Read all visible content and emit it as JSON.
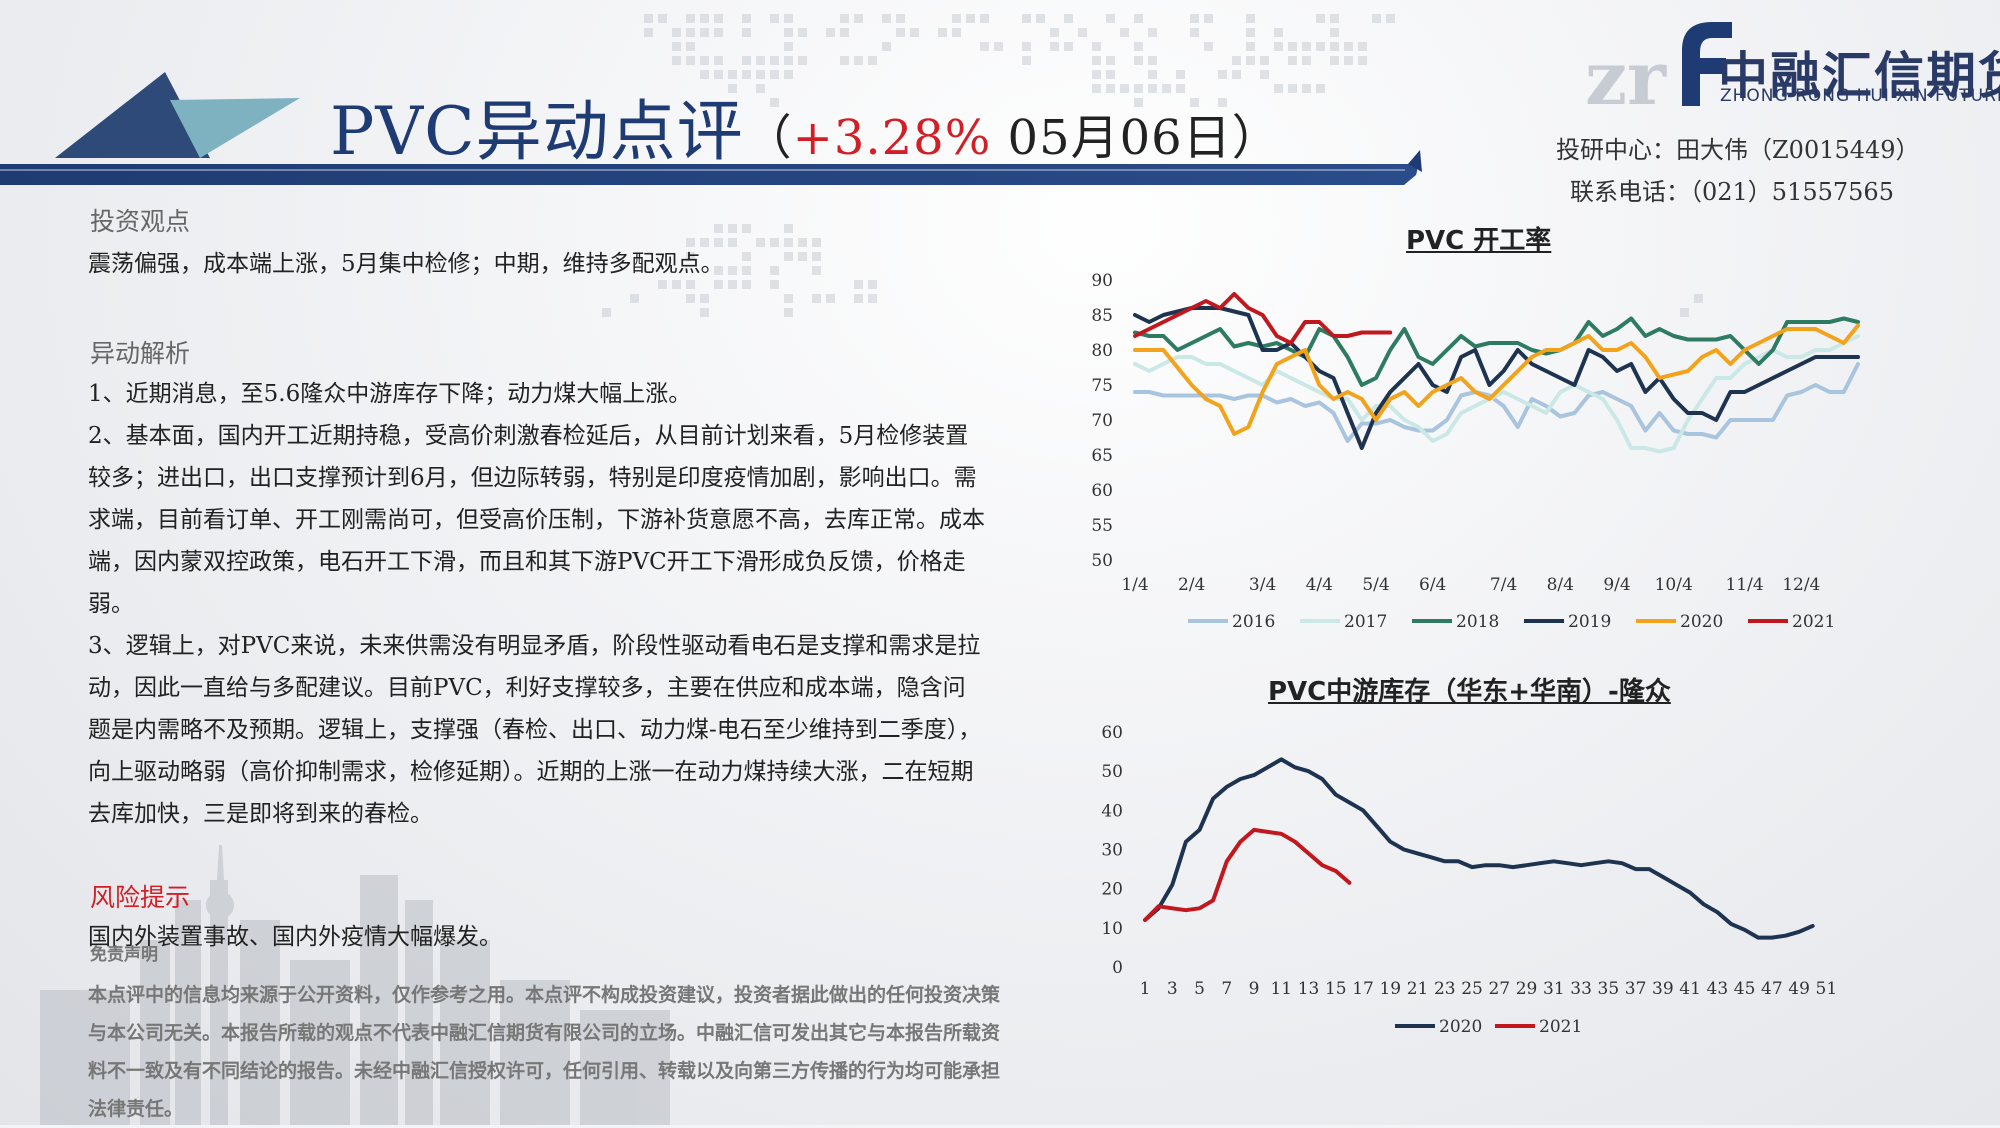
{
  "header": {
    "title_main": "PVC异动点评",
    "title_open": "（",
    "title_pct": "+3.28%",
    "title_date": " 05月06日）",
    "logo_cn": "中融汇信期货",
    "logo_en": "ZHONG RONG HUI XIN FUTURES",
    "logo_mark": "zr",
    "contact_analyst": "投研中心：田大伟（Z0015449）",
    "contact_phone": "联系电话：（021）51557565"
  },
  "colors": {
    "navy": "#1f3b73",
    "red": "#d21f26",
    "teal": "#7fb2c1"
  },
  "sections": {
    "view_title": "投资观点",
    "view_text": "震荡偏强，成本端上涨，5月集中检修；中期，维持多配观点。",
    "analysis_title": "异动解析",
    "analysis_1": "1、近期消息，至5.6隆众中游库存下降；动力煤大幅上涨。",
    "analysis_2": "2、基本面，国内开工近期持稳，受高价刺激春检延后，从目前计划来看，5月检修装置较多；进出口，出口支撑预计到6月，但边际转弱，特别是印度疫情加剧，影响出口。需求端，目前看订单、开工刚需尚可，但受高价压制，下游补货意愿不高，去库正常。成本端，因内蒙双控政策，电石开工下滑，而且和其下游PVC开工下滑形成负反馈，价格走弱。",
    "analysis_3": "3、逻辑上，对PVC来说，未来供需没有明显矛盾，阶段性驱动看电石是支撑和需求是拉动，因此一直给与多配建议。目前PVC，利好支撑较多，主要在供应和成本端，隐含问题是内需略不及预期。逻辑上，支撑强（春检、出口、动力煤-电石至少维持到二季度），向上驱动略弱（高价抑制需求，检修延期）。近期的上涨一在动力煤持续大涨，二在短期去库加快，三是即将到来的春检。",
    "risk_title": "风险提示",
    "risk_text": "国内外装置事故、国内外疫情大幅爆发。",
    "disclaimer_title": "免责声明",
    "disclaimer_text": "本点评中的信息均来源于公开资料，仅作参考之用。本点评不构成投资建议，投资者据此做出的任何投资决策与本公司无关。本报告所载的观点不代表中融汇信期货有限公司的立场。中融汇信可发出其它与本报告所载资料不一致及有不同结论的报告。未经中融汇信授权许可，任何引用、转载以及向第三方传播的行为均可能承担法律责任。"
  },
  "chart_data": [
    {
      "type": "line",
      "title": "PVC 开工率",
      "ylim": [
        50,
        90
      ],
      "yticks": [
        50,
        55,
        60,
        65,
        70,
        75,
        80,
        85,
        90
      ],
      "x_ticks": [
        "1/4",
        "2/4",
        "3/4",
        "4/4",
        "5/4",
        "6/4",
        "7/4",
        "8/4",
        "9/4",
        "10/4",
        "11/4",
        "12/4"
      ],
      "x_count": 52,
      "legend": "bottom",
      "series": [
        {
          "name": "2016",
          "color": "#a9c4df",
          "values": [
            74,
            74,
            73.5,
            73.5,
            73.5,
            73.5,
            73.5,
            73,
            73.5,
            73.5,
            72.5,
            73,
            72,
            72.5,
            71,
            67,
            69.5,
            69.5,
            70,
            69,
            68.5,
            68.5,
            70,
            73.5,
            74,
            73.5,
            72,
            69,
            73,
            72,
            70.5,
            71,
            73.5,
            74,
            73,
            72,
            68.5,
            71,
            68.5,
            68,
            68,
            67.5,
            70,
            70,
            70,
            70,
            73.5,
            74,
            75,
            74,
            74,
            78
          ]
        },
        {
          "name": "2017",
          "color": "#c9e8e6",
          "values": [
            78,
            77,
            78,
            79,
            79,
            78,
            78,
            77,
            76,
            75,
            77,
            76,
            75,
            74,
            73,
            73,
            70,
            72,
            72,
            70,
            69,
            67,
            68,
            71,
            72,
            73,
            74,
            73,
            72,
            71,
            74,
            75,
            74,
            73,
            70,
            66,
            66,
            65.5,
            66,
            70,
            73,
            76,
            76,
            78,
            79,
            80,
            79,
            79,
            80,
            80,
            81,
            82
          ]
        },
        {
          "name": "2018",
          "color": "#2e7b62",
          "values": [
            82.5,
            82,
            82,
            80,
            81,
            82,
            83,
            80.5,
            81,
            80.5,
            81,
            80,
            79,
            83,
            82,
            79,
            75,
            76,
            80,
            83,
            79,
            78,
            80,
            82,
            80.5,
            81,
            81,
            81,
            80,
            79.5,
            80,
            81,
            84,
            82,
            83,
            84.5,
            82,
            83,
            82,
            81.5,
            81.5,
            81.5,
            82,
            80,
            78,
            80,
            84,
            84,
            84,
            84,
            84.5,
            84
          ]
        },
        {
          "name": "2019",
          "color": "#1e3350",
          "values": [
            85,
            84,
            85,
            85.5,
            86,
            86,
            86,
            85.5,
            85,
            80,
            80,
            81,
            79,
            77,
            76,
            71,
            66,
            71,
            74,
            76,
            78,
            75,
            74,
            79,
            80,
            75,
            77,
            80,
            78,
            77,
            76,
            75,
            80,
            79,
            77,
            78,
            74,
            76,
            73,
            71,
            71,
            70,
            74,
            74,
            75,
            76,
            77,
            78,
            79,
            79,
            79,
            79
          ]
        },
        {
          "name": "2020",
          "color": "#f2a31b",
          "values": [
            80,
            80,
            80,
            77.5,
            75,
            73,
            72,
            68,
            69,
            74,
            78,
            79,
            80,
            75,
            73,
            74,
            73,
            70,
            73,
            74,
            72,
            74,
            75,
            76,
            74,
            73,
            75,
            77,
            79,
            80,
            80,
            81,
            82,
            80,
            80,
            81,
            79,
            76,
            76.5,
            77,
            79,
            80,
            78,
            80,
            81,
            82,
            83,
            83,
            83,
            82,
            81,
            83.5
          ]
        },
        {
          "name": "2021",
          "color": "#c0181e",
          "values": [
            82,
            83,
            84,
            85,
            86,
            87,
            86,
            88,
            86,
            85,
            82,
            81,
            84,
            84,
            82,
            82,
            82.5,
            82.5,
            82.5
          ]
        }
      ]
    },
    {
      "type": "line",
      "title": "PVC中游库存（华东+华南）-隆众",
      "ylim": [
        0,
        60
      ],
      "yticks": [
        0,
        10,
        20,
        30,
        40,
        50,
        60
      ],
      "x_ticks": [
        "1",
        "3",
        "5",
        "7",
        "9",
        "11",
        "13",
        "15",
        "17",
        "19",
        "21",
        "23",
        "25",
        "27",
        "29",
        "31",
        "33",
        "35",
        "37",
        "39",
        "41",
        "43",
        "45",
        "47",
        "49",
        "51"
      ],
      "x_first": 1,
      "x_count": 52,
      "legend": "bottom",
      "series": [
        {
          "name": "2020",
          "color": "#1e3350",
          "values": [
            null,
            null,
            null,
            null,
            null,
            null,
            null,
            null,
            null,
            null,
            null,
            null,
            null,
            null,
            null,
            null,
            null,
            null,
            null,
            null,
            null,
            null,
            null,
            null,
            null,
            null,
            null,
            null,
            null,
            null,
            null,
            null,
            null,
            null,
            null,
            null,
            null,
            null,
            null,
            null,
            null,
            null,
            null,
            null,
            null,
            null,
            null,
            null,
            null,
            null,
            null
          ]
        },
        {
          "name": "2021",
          "color": "#c0181e",
          "values": []
        }
      ],
      "series_2020": [
        12,
        15,
        21,
        32,
        35,
        43,
        46,
        48,
        49,
        51,
        53,
        51,
        50,
        48,
        44,
        42,
        40,
        36,
        32,
        30,
        29,
        28,
        27,
        27,
        25.5,
        26,
        26,
        25.5,
        26,
        26.5,
        27,
        26.5,
        26,
        26.5,
        27,
        26.5,
        25,
        25,
        23,
        21,
        19,
        16,
        14,
        11,
        9.5,
        7.5,
        7.5,
        8,
        9,
        10.5
      ],
      "series_2021": [
        12,
        15.5,
        15,
        14.5,
        15,
        17,
        27,
        32,
        35,
        34.5,
        34,
        32,
        29,
        26,
        24.5,
        21.5
      ]
    }
  ]
}
